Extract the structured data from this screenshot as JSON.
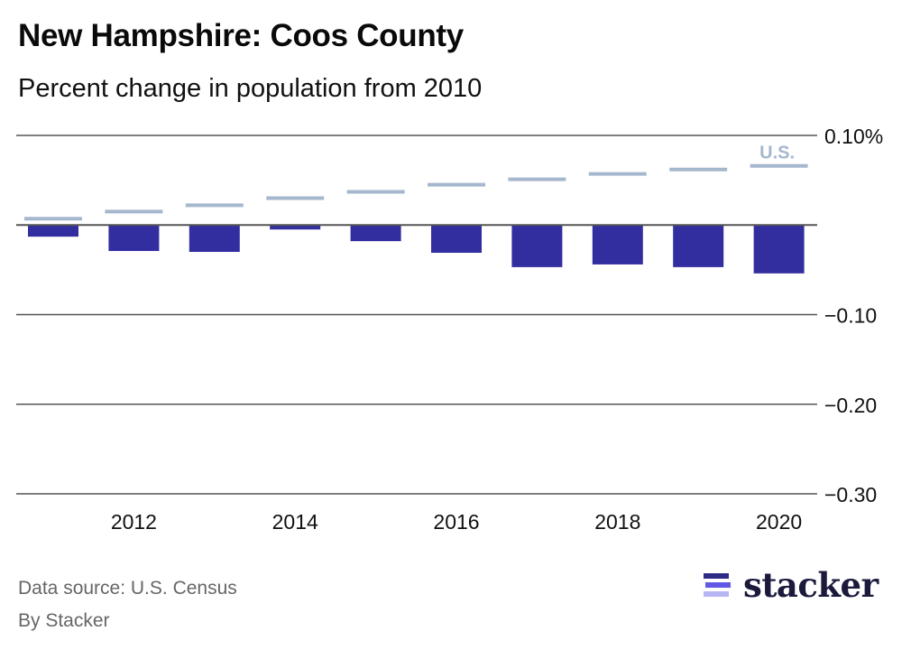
{
  "header": {
    "title": "New Hampshire: Coos County",
    "subtitle": "Percent change in population from 2010"
  },
  "footer": {
    "source": "Data source: U.S. Census",
    "byline": "By Stacker",
    "logo_text": "stacker"
  },
  "colors": {
    "county_bar": "#332ea0",
    "us_line": "#a5b7cd",
    "grid": "#555555",
    "logo_dark": "#2e2a86",
    "logo_mid": "#6159e6",
    "logo_light": "#b8b5f5"
  },
  "chart_data": {
    "type": "bar",
    "title": "New Hampshire: Coos County",
    "subtitle": "Percent change in population from 2010",
    "xlabel": "",
    "ylabel": "",
    "categories": [
      "2011",
      "2012",
      "2013",
      "2014",
      "2015",
      "2016",
      "2017",
      "2018",
      "2019",
      "2020"
    ],
    "series": [
      {
        "name": "Coos County",
        "kind": "bar",
        "values": [
          -0.013,
          -0.029,
          -0.03,
          -0.005,
          -0.018,
          -0.031,
          -0.047,
          -0.044,
          -0.047,
          -0.054
        ]
      },
      {
        "name": "U.S.",
        "kind": "marker-line",
        "values": [
          0.007,
          0.015,
          0.022,
          0.03,
          0.037,
          0.045,
          0.051,
          0.057,
          0.062,
          0.066
        ]
      }
    ],
    "ylim": [
      -0.3,
      0.1
    ],
    "yticks": [
      0.1,
      0,
      -0.1,
      -0.2,
      -0.3
    ],
    "ytick_labels": [
      "0.10%",
      "",
      "−0.10",
      "−0.20",
      "−0.30"
    ],
    "xtick_labels": [
      "2012",
      "2014",
      "2016",
      "2018",
      "2020"
    ],
    "xtick_categories": [
      "2012",
      "2014",
      "2016",
      "2018",
      "2020"
    ],
    "legend": {
      "label": "U.S.",
      "placement": "top-right, above last U.S. marker"
    },
    "grid": true,
    "y_axis_side": "right"
  }
}
